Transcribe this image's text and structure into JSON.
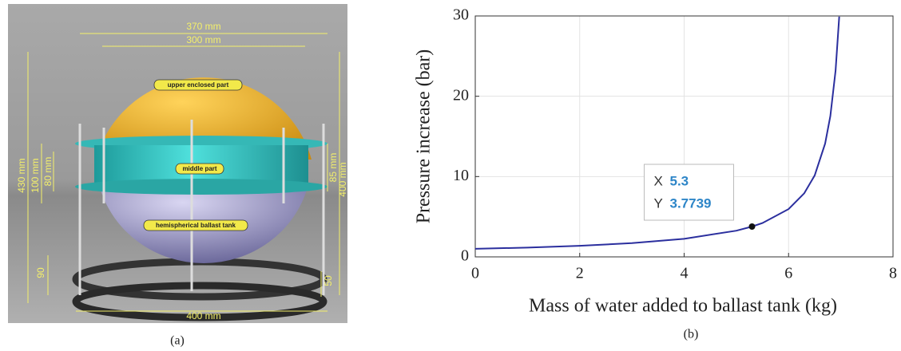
{
  "panel_a": {
    "dimensions": [
      "370 mm",
      "300 mm",
      "430 mm",
      "100 mm",
      "80 mm",
      "85 mm",
      "400 mm",
      "90",
      "50",
      "400 mm"
    ],
    "labels": [
      "upper enclosed part",
      "middle part",
      "hemispherical ballast tank"
    ],
    "caption": "(a)"
  },
  "chart_data": {
    "type": "line",
    "x_label": "Mass of water added to ballast tank (kg)",
    "y_label": "Pressure increase (bar)",
    "caption": "(b)",
    "x": [
      0,
      1,
      2,
      3,
      4,
      5,
      5.3,
      5.5,
      6,
      6.3,
      6.5,
      6.7,
      6.8,
      6.9,
      6.97
    ],
    "values": [
      1,
      1.16,
      1.38,
      1.71,
      2.25,
      3.26,
      3.7739,
      4.21,
      5.95,
      7.92,
      10.14,
      14.11,
      17.54,
      23.19,
      29.92
    ],
    "color": "#2b2f9e",
    "xlim": [
      0,
      8
    ],
    "xticks": [
      0,
      2,
      4,
      6,
      8
    ],
    "ylim": [
      0,
      30
    ],
    "yticks": [
      0,
      10,
      20,
      30
    ],
    "grid": true,
    "datatip": {
      "x_label": "X",
      "x": 5.3,
      "y_label": "Y",
      "y": 3.7739
    }
  }
}
